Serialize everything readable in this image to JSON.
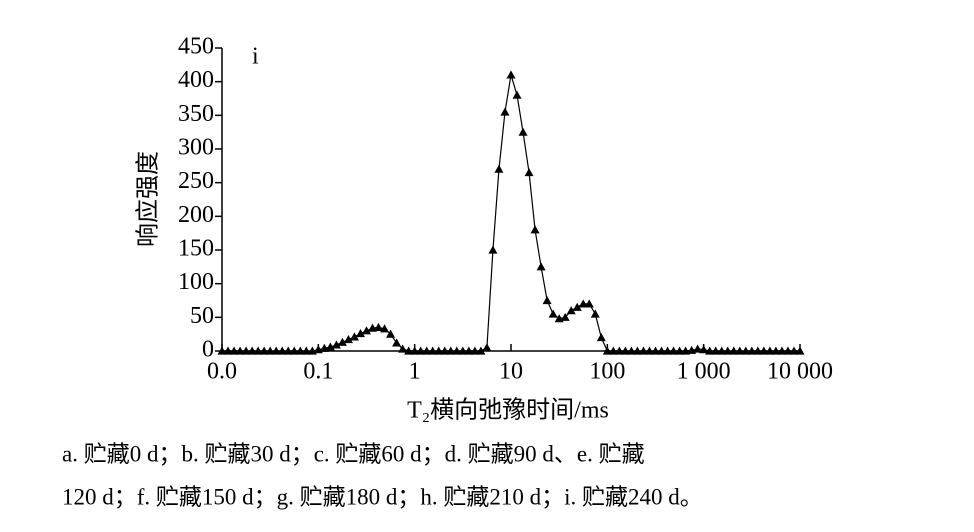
{
  "chart_data": {
    "type": "line",
    "panel_label": "i",
    "y_label": "响应强度",
    "x_label": "T₂横向弛豫时间/ms",
    "caption": [
      "a. 贮藏0 d；b. 贮藏30 d；c. 贮藏60 d；d. 贮藏90 d、e. 贮藏",
      "120 d；f. 贮藏150 d；g. 贮藏180 d；h. 贮藏210 d；i. 贮藏240 d。"
    ],
    "xscale": "log",
    "xlim": [
      0.01,
      10000
    ],
    "xticks": [
      {
        "value": 0.01,
        "label": "0.0"
      },
      0.1,
      1,
      10,
      100,
      {
        "value": 1000,
        "label": "1 000"
      },
      {
        "value": 10000,
        "label": "10 000"
      }
    ],
    "ylim": [
      0,
      450
    ],
    "yticks": [
      0,
      50,
      100,
      150,
      200,
      250,
      300,
      350,
      400,
      450
    ],
    "marker": "triangle",
    "color": "#000000",
    "x": [
      0.01,
      0.01155,
      0.01334,
      0.0154,
      0.01778,
      0.02054,
      0.02371,
      0.02738,
      0.03162,
      0.03652,
      0.04217,
      0.0487,
      0.05623,
      0.06494,
      0.07499,
      0.0866,
      0.1,
      0.1155,
      0.1334,
      0.154,
      0.1778,
      0.2054,
      0.2371,
      0.2738,
      0.3162,
      0.3652,
      0.4217,
      0.487,
      0.5623,
      0.6494,
      0.7499,
      0.866,
      1,
      1.155,
      1.334,
      1.54,
      1.778,
      2.054,
      2.371,
      2.738,
      3.162,
      3.652,
      4.217,
      4.87,
      5.623,
      6.494,
      7.499,
      8.66,
      10,
      11.55,
      13.34,
      15.4,
      17.78,
      20.54,
      23.71,
      27.38,
      31.62,
      36.52,
      42.17,
      48.7,
      56.23,
      64.94,
      74.99,
      86.6,
      100,
      115.5,
      133.4,
      154,
      177.8,
      205.4,
      237.1,
      273.8,
      316.2,
      365.2,
      421.7,
      487,
      562.3,
      649.4,
      749.9,
      866,
      1000,
      1155,
      1334,
      1540,
      1778,
      2054,
      2371,
      2738,
      3162,
      3652,
      4217,
      4870,
      5623,
      6494,
      7499,
      8660,
      10000
    ],
    "values": [
      0,
      0,
      0,
      0,
      0,
      0,
      0,
      0,
      0,
      0,
      0,
      0,
      0,
      0,
      0,
      0,
      2,
      4,
      6,
      9,
      13,
      17,
      21,
      26,
      30,
      34,
      35,
      33,
      25,
      12,
      3,
      0,
      0,
      0,
      0,
      0,
      0,
      0,
      0,
      0,
      0,
      0,
      0,
      0,
      5,
      150,
      270,
      355,
      410,
      380,
      325,
      265,
      180,
      125,
      75,
      55,
      48,
      50,
      60,
      65,
      70,
      70,
      55,
      20,
      0,
      0,
      0,
      0,
      0,
      0,
      0,
      0,
      0,
      0,
      0,
      0,
      0,
      0,
      1,
      3,
      2,
      0,
      0,
      0,
      0,
      0,
      0,
      0,
      0,
      0,
      0,
      0,
      0,
      0,
      0,
      0,
      0
    ]
  }
}
